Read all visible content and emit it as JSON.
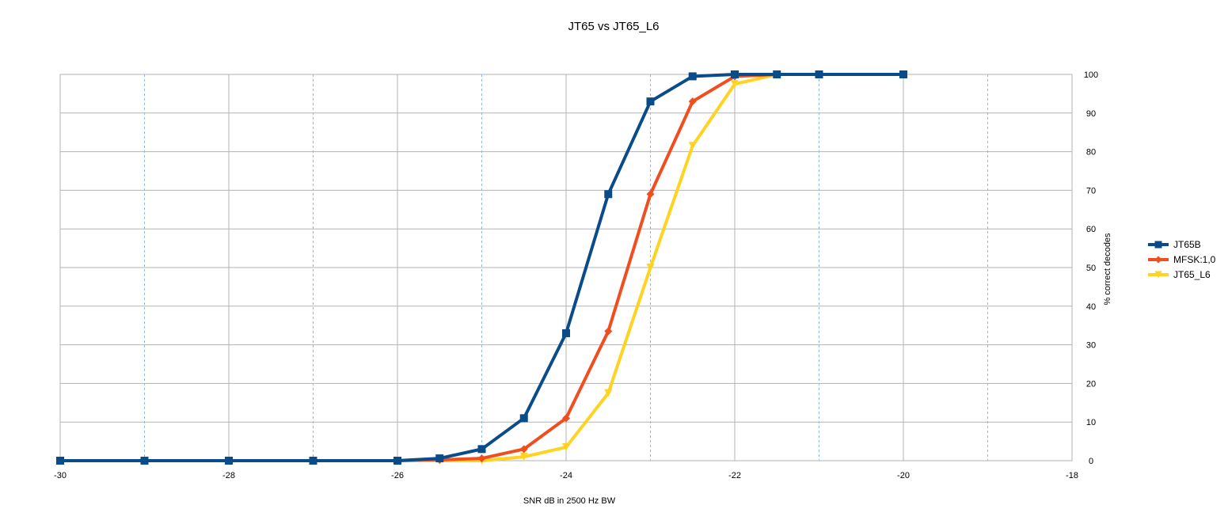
{
  "chart_data": {
    "type": "line",
    "title": "JT65 vs JT65_L6",
    "xlabel": "SNR dB in 2500 Hz BW",
    "ylabel": "% correct decodes",
    "xlim": [
      -30,
      -18
    ],
    "ylim": [
      0,
      100
    ],
    "x_ticks": [
      -30,
      -28,
      -26,
      -24,
      -22,
      -20,
      -18
    ],
    "y_ticks": [
      0,
      10,
      20,
      30,
      40,
      50,
      60,
      70,
      80,
      90,
      100
    ],
    "x_minor_grid": [
      -29,
      -27,
      -25,
      -23,
      -21,
      -19
    ],
    "y_axis_side": "right",
    "grid": true,
    "legend_position": "right",
    "series": [
      {
        "name": "JT65B",
        "color": "#0a4c8a",
        "marker": "square",
        "x": [
          -30,
          -29,
          -28,
          -27,
          -26,
          -25.5,
          -25,
          -24.5,
          -24,
          -23.5,
          -23,
          -22.5,
          -22,
          -21.5,
          -21,
          -20
        ],
        "y": [
          0,
          0,
          0,
          0,
          0,
          0.6,
          3,
          11,
          33,
          69,
          93,
          99.5,
          100,
          100,
          100,
          100
        ]
      },
      {
        "name": "MFSK:1,0",
        "color": "#f04e1e",
        "marker": "diamond",
        "x": [
          -26,
          -25.5,
          -25,
          -24.5,
          -24,
          -23.5,
          -23,
          -22.5,
          -22,
          -21.5
        ],
        "y": [
          0,
          0.2,
          0.6,
          3,
          11,
          33.5,
          69,
          93,
          99.5,
          100
        ]
      },
      {
        "name": "JT65_L6",
        "color": "#ffd320",
        "marker": "triangle-down",
        "x": [
          -25.5,
          -25,
          -24.5,
          -24,
          -23.5,
          -23,
          -22.5,
          -22,
          -21.5
        ],
        "y": [
          0,
          0,
          1,
          3.5,
          17.5,
          50,
          81.5,
          97.5,
          100
        ]
      }
    ]
  }
}
